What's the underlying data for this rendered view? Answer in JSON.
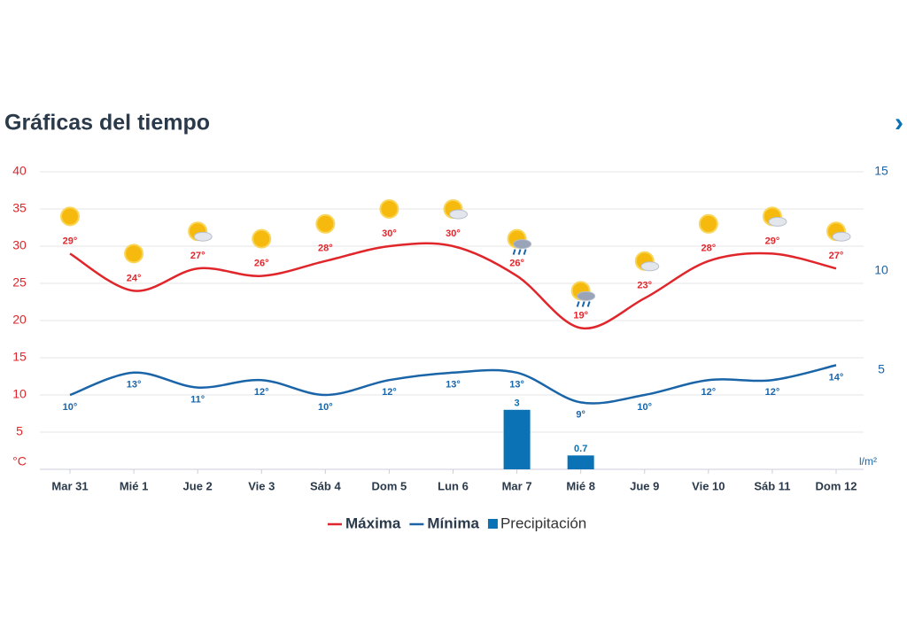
{
  "header": {
    "title": "Gráficas del tiempo",
    "next": "›"
  },
  "chart_data": {
    "type": "line",
    "categories": [
      "Mar 31",
      "Mié 1",
      "Jue 2",
      "Vie 3",
      "Sáb 4",
      "Dom 5",
      "Lun 6",
      "Mar 7",
      "Mié 8",
      "Jue 9",
      "Vie 10",
      "Sáb 11",
      "Dom 12"
    ],
    "series": [
      {
        "name": "Máxima",
        "color": "#e0262b",
        "values": [
          29,
          24,
          27,
          26,
          28,
          30,
          30,
          26,
          19,
          23,
          28,
          29,
          27
        ],
        "value_labels": [
          "29°",
          "24°",
          "27°",
          "26°",
          "28°",
          "30°",
          "30°",
          "26°",
          "19°",
          "23°",
          "28°",
          "29°",
          "27°"
        ]
      },
      {
        "name": "Mínima",
        "color": "#1a64a8",
        "values": [
          10,
          13,
          11,
          12,
          10,
          12,
          13,
          13,
          9,
          10,
          12,
          12,
          14
        ],
        "value_labels": [
          "10°",
          "13°",
          "11°",
          "12°",
          "10°",
          "12°",
          "13°",
          "13°",
          "9°",
          "10°",
          "12°",
          "12°",
          "14°"
        ]
      },
      {
        "name": "Precipitación",
        "type": "bar",
        "axis": "y2",
        "color": "#0a72b5",
        "values": [
          null,
          null,
          null,
          null,
          null,
          null,
          null,
          3,
          0.7,
          null,
          null,
          null,
          null
        ]
      }
    ],
    "ylim": [
      0,
      40
    ],
    "yticks": [
      {
        "value": 0,
        "label": "°C"
      },
      5,
      10,
      15,
      20,
      25,
      30,
      35,
      40
    ],
    "y2lim": [
      0,
      15
    ],
    "y2ticks": [
      {
        "value": 0,
        "label": "l/m²"
      },
      5,
      10,
      15
    ],
    "grid": true
  }
}
